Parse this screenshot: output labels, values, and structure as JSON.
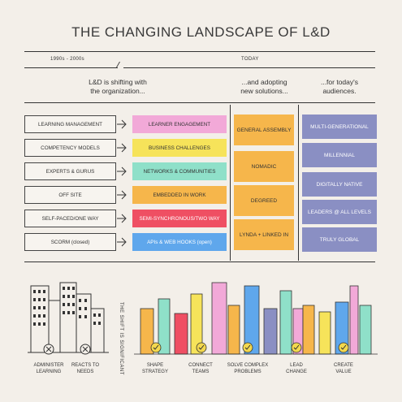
{
  "title": "THE CHANGING LANDSCAPE OF L&D",
  "eras": {
    "past": "1990s - 2000s",
    "now": "TODAY"
  },
  "headings": {
    "shift": [
      "L&D is shifting with",
      "the organization..."
    ],
    "solutions": [
      "...and adopting",
      "new solutions..."
    ],
    "audiences": [
      "...for today's",
      "audiences."
    ]
  },
  "old_items": [
    "LEARNING MANAGEMENT",
    "COMPETENCY MODELS",
    "EXPERTS & GURUS",
    "OFF SITE",
    "SELF-PACED/ONE WAY",
    "SCORM (closed)"
  ],
  "new_items": [
    {
      "label": "LEARNER ENGAGEMENT",
      "color": "#f2a9d8"
    },
    {
      "label": "BUSINESS CHALLENGES",
      "color": "#f6e35a"
    },
    {
      "label": "NETWORKS & COMMUNITIES",
      "color": "#8fe0c9"
    },
    {
      "label": "EMBEDDED IN WORK",
      "color": "#f6b64b"
    },
    {
      "label": "SEMI-SYNCHRONOUS/TWO WAY",
      "color": "#ef4f63"
    },
    {
      "label": "APIs & WEB HOOKS (open)",
      "color": "#5fa7ec"
    }
  ],
  "solutions": [
    "GENERAL ASSEMBLY",
    "NOMADIC",
    "DEGREED",
    "LYNDA + LINKED IN"
  ],
  "audiences": [
    "MULTI-GENERATIONAL",
    "MILLENNIAL",
    "DIGITALLY NATIVE",
    "LEADERS @ ALL LEVELS",
    "TRULY GLOBAL"
  ],
  "shift_note": "THE SHIFT IS SIGNIFICANT",
  "old_captions": [
    [
      "ADMINISTER",
      "LEARNING"
    ],
    [
      "REACTS TO",
      "NEEDS"
    ]
  ],
  "new_captions": [
    [
      "SHAPE",
      "STRATEGY"
    ],
    [
      "CONNECT",
      "TEAMS"
    ],
    [
      "SOLVE COMPLEX",
      "PROBLEMS"
    ],
    [
      "LEAD",
      "CHANGE"
    ],
    [
      "CREATE",
      "VALUE"
    ]
  ],
  "colors": {
    "orange": "#f6b64b",
    "purple": "#8a8fc3",
    "pink": "#f2a9d8",
    "yellow": "#f6e35a",
    "teal": "#8fe0c9",
    "red": "#ef4f63",
    "blue": "#5fa7ec",
    "check": "#f3d84d"
  }
}
